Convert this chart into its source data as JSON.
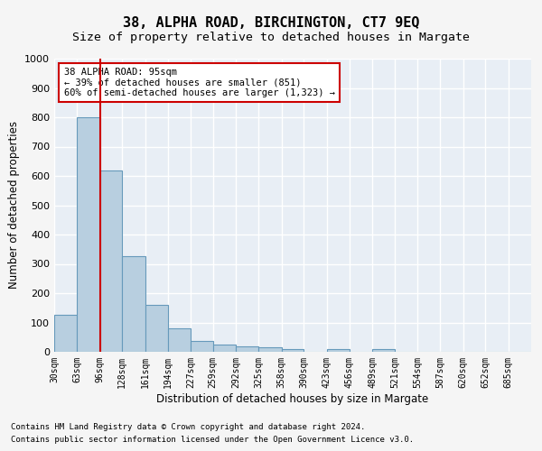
{
  "title1": "38, ALPHA ROAD, BIRCHINGTON, CT7 9EQ",
  "title2": "Size of property relative to detached houses in Margate",
  "xlabel": "Distribution of detached houses by size in Margate",
  "ylabel": "Number of detached properties",
  "footnote1": "Contains HM Land Registry data © Crown copyright and database right 2024.",
  "footnote2": "Contains public sector information licensed under the Open Government Licence v3.0.",
  "annotation_line1": "38 ALPHA ROAD: 95sqm",
  "annotation_line2": "← 39% of detached houses are smaller (851)",
  "annotation_line3": "60% of semi-detached houses are larger (1,323) →",
  "bar_values": [
    125,
    800,
    620,
    325,
    160,
    80,
    38,
    25,
    20,
    15,
    10,
    0,
    10,
    0,
    10,
    0,
    0,
    0,
    0,
    0,
    0
  ],
  "bin_edges": [
    30,
    63,
    96,
    128,
    161,
    194,
    227,
    259,
    292,
    325,
    358,
    390,
    423,
    456,
    489,
    521,
    554,
    587,
    620,
    652,
    685,
    718
  ],
  "x_tick_labels": [
    "30sqm",
    "63sqm",
    "96sqm",
    "128sqm",
    "161sqm",
    "194sqm",
    "227sqm",
    "259sqm",
    "292sqm",
    "325sqm",
    "358sqm",
    "390sqm",
    "423sqm",
    "456sqm",
    "489sqm",
    "521sqm",
    "554sqm",
    "587sqm",
    "620sqm",
    "652sqm",
    "685sqm"
  ],
  "bar_color": "#b8cfe0",
  "bar_edge_color": "#6699bb",
  "red_line_x": 96,
  "ylim": [
    0,
    1000
  ],
  "yticks": [
    0,
    100,
    200,
    300,
    400,
    500,
    600,
    700,
    800,
    900,
    1000
  ],
  "background_color": "#e8eef5",
  "grid_color": "#ffffff",
  "annotation_box_color": "#ffffff",
  "annotation_box_edge": "#cc0000",
  "red_line_color": "#cc0000",
  "title_fontsize": 11,
  "subtitle_fontsize": 9.5,
  "tick_label_fontsize": 7,
  "axis_label_fontsize": 8.5,
  "footnote_fontsize": 6.5
}
